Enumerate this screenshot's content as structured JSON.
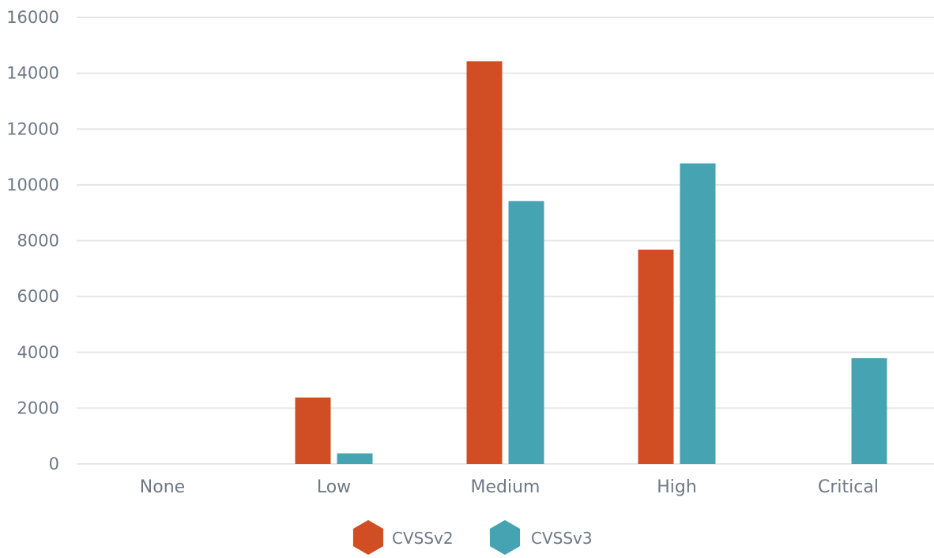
{
  "chart_data": {
    "type": "bar",
    "categories": [
      "None",
      "Low",
      "Medium",
      "High",
      "Critical"
    ],
    "series": [
      {
        "name": "CVSSv2",
        "values": [
          0,
          2380,
          14430,
          7680,
          0
        ],
        "color": "#d14d24"
      },
      {
        "name": "CVSSv3",
        "values": [
          0,
          380,
          9420,
          10770,
          3790
        ],
        "color": "#45a3b2"
      }
    ],
    "ylim": [
      0,
      16000
    ],
    "yticks": [
      0,
      2000,
      4000,
      6000,
      8000,
      10000,
      12000,
      14000,
      16000
    ],
    "grid": true,
    "legend": "bottom-center",
    "legend_marker": "hexagon-icon",
    "colors": {
      "grid": "#e6e6e6",
      "tick_text": "#6f7885"
    }
  }
}
